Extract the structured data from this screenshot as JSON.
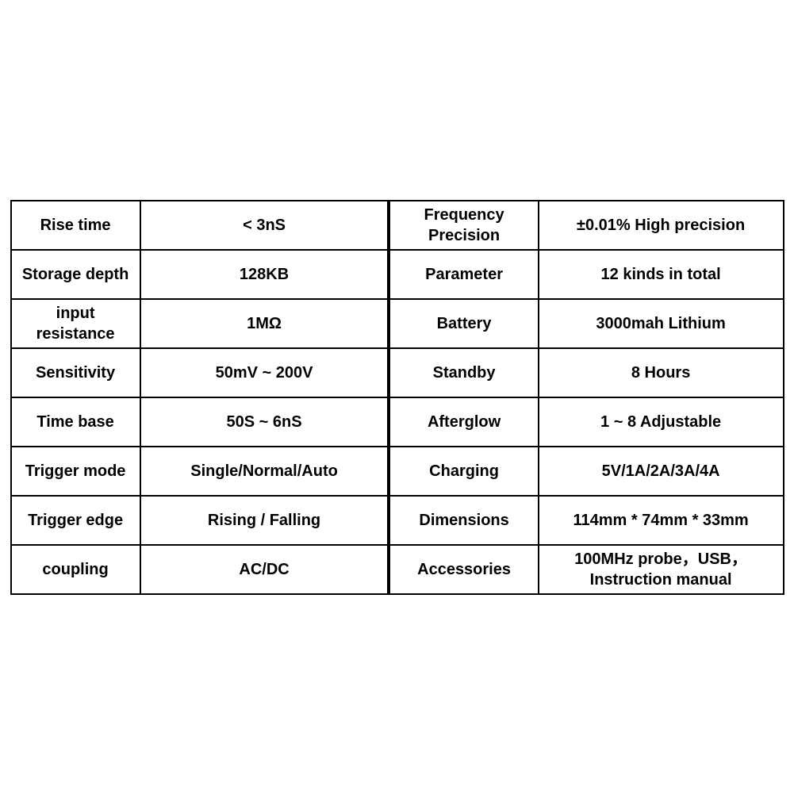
{
  "table": {
    "background_color": "#ffffff",
    "border_color": "#000000",
    "text_color": "#000000",
    "font_size": 20,
    "rows": [
      {
        "label1": "Rise time",
        "value1": "< 3nS",
        "label2": "Frequency Precision",
        "value2": "±0.01% High precision"
      },
      {
        "label1": "Storage depth",
        "value1": "128KB",
        "label2": "Parameter",
        "value2": "12 kinds in total"
      },
      {
        "label1": "input resistance",
        "value1": "1MΩ",
        "label2": "Battery",
        "value2": "3000mah Lithium"
      },
      {
        "label1": "Sensitivity",
        "value1": "50mV ~ 200V",
        "label2": "Standby",
        "value2": "8 Hours"
      },
      {
        "label1": "Time base",
        "value1": "50S ~ 6nS",
        "label2": "Afterglow",
        "value2": "1 ~ 8 Adjustable"
      },
      {
        "label1": "Trigger mode",
        "value1": "Single/Normal/Auto",
        "label2": "Charging",
        "value2": "5V/1A/2A/3A/4A"
      },
      {
        "label1": "Trigger edge",
        "value1": "Rising / Falling",
        "label2": "Dimensions",
        "value2": "114mm * 74mm * 33mm"
      },
      {
        "label1": "coupling",
        "value1": "AC/DC",
        "label2": "Accessories",
        "value2": "100MHz probe，USB，Instruction manual"
      }
    ]
  }
}
